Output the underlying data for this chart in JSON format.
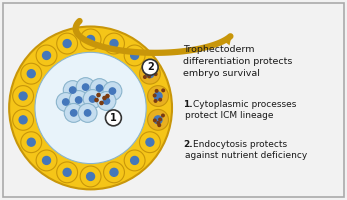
{
  "bg_color": "#f2f2f2",
  "yellow_fill": "#F5C518",
  "yellow_edge": "#C8960A",
  "blastocoel_fill": "#e8f3fa",
  "icm_fill": "#c5ddef",
  "icm_edge": "#8ab4cc",
  "nucleus_blue": "#4477bb",
  "brown_dot": "#7B3B10",
  "spotted_fill": "#E8B020",
  "arrow_color": "#C8960A",
  "text_dark": "#1a1a1a",
  "border_color": "#aaaaaa",
  "title_text_line1": "Trophectoderm",
  "title_text_line2": "differentiation protects",
  "title_text_line3": "embryo survival",
  "pt1_bold": "1.",
  "pt1_rest": " Cytoplasmic processes\n   protect ICM lineage",
  "pt2_bold": "2.",
  "pt2_rest": " Endocytosis protects\n   against nutrient deficiency",
  "fig_width": 3.47,
  "fig_height": 2.0,
  "dpi": 100
}
